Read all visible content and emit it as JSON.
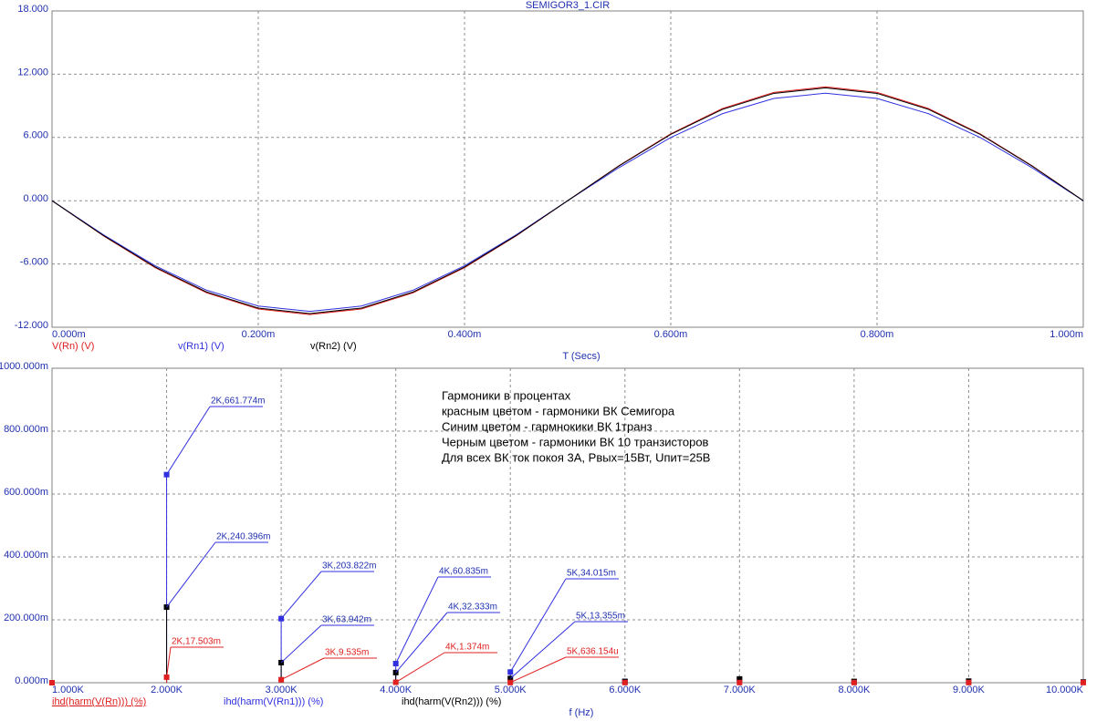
{
  "chart_data": [
    {
      "type": "line",
      "title": "SEMIGOR3_1.CIR",
      "x_label": "T (Secs)",
      "x": [
        0,
        5e-05,
        0.0001,
        0.00015,
        0.0002,
        0.00025,
        0.0003,
        0.00035,
        0.0004,
        0.00045,
        0.0005,
        0.00055,
        0.0006,
        0.00065,
        0.0007,
        0.00075,
        0.0008,
        0.00085,
        0.0009,
        0.00095,
        0.001
      ],
      "series": [
        {
          "name": "V(Rn) (V)",
          "color": "#e02020",
          "values": [
            0,
            -3.34,
            -6.35,
            -8.74,
            -10.27,
            -10.8,
            -10.27,
            -8.74,
            -6.35,
            -3.34,
            0,
            3.34,
            6.35,
            8.74,
            10.27,
            10.8,
            10.27,
            8.74,
            6.35,
            3.34,
            0
          ]
        },
        {
          "name": "v(Rn1) (V)",
          "color": "#3030e0",
          "values": [
            0,
            -3.24,
            -6.17,
            -8.49,
            -9.99,
            -10.5,
            -9.99,
            -8.49,
            -6.17,
            -3.24,
            0,
            3.15,
            6.0,
            8.25,
            9.7,
            10.2,
            9.7,
            8.25,
            6.0,
            3.15,
            0
          ]
        },
        {
          "name": "v(Rn2) (V)",
          "color": "#000000",
          "values": [
            0,
            -3.31,
            -6.29,
            -8.66,
            -10.18,
            -10.7,
            -10.18,
            -8.66,
            -6.29,
            -3.31,
            0,
            3.31,
            6.29,
            8.66,
            10.18,
            10.7,
            10.18,
            8.66,
            6.29,
            3.31,
            0
          ]
        }
      ],
      "xlim": [
        0,
        0.001
      ],
      "ylim": [
        -12,
        18
      ],
      "xticks": [
        {
          "value": 0,
          "label": "0.000m"
        },
        {
          "value": 0.0002,
          "label": "0.200m"
        },
        {
          "value": 0.0004,
          "label": "0.400m"
        },
        {
          "value": 0.0006,
          "label": "0.600m"
        },
        {
          "value": 0.0008,
          "label": "0.800m"
        },
        {
          "value": 0.001,
          "label": "1.000m"
        }
      ],
      "yticks": [
        {
          "value": -12,
          "label": "-12.000"
        },
        {
          "value": -6,
          "label": "-6.000"
        },
        {
          "value": 0,
          "label": "0.000"
        },
        {
          "value": 6,
          "label": "6.000"
        },
        {
          "value": 12,
          "label": "12.000"
        },
        {
          "value": 18,
          "label": "18.000"
        }
      ],
      "grid": true
    },
    {
      "type": "stem",
      "x_label": "f (Hz)",
      "x": [
        1000,
        2000,
        3000,
        4000,
        5000,
        6000,
        7000,
        8000,
        9000,
        10000
      ],
      "series": [
        {
          "name": "ihd(harm(V(Rn))) (%)",
          "color": "#e02020",
          "values": [
            0,
            0.017503,
            0.009535,
            0.001374,
            0.000636154,
            0.0005,
            0.0005,
            0.0005,
            0.0005,
            0.0005
          ],
          "value_labels": [
            null,
            "2K,17.503m",
            "3K,9.535m",
            "4K,1.374m",
            "5K,636.154u",
            null,
            null,
            null,
            null,
            null
          ]
        },
        {
          "name": "ihd(harm(V(Rn1))) (%)",
          "color": "#3030e0",
          "values": [
            0,
            0.661774,
            0.203822,
            0.060835,
            0.034015,
            0.004,
            0.01,
            0.003,
            0.004,
            0.002
          ],
          "value_labels": [
            null,
            "2K,661.774m",
            "3K,203.822m",
            "4K,60.835m",
            "5K,34.015m",
            null,
            null,
            null,
            null,
            null
          ]
        },
        {
          "name": "ihd(harm(V(Rn2))) (%)",
          "color": "#000000",
          "values": [
            0,
            0.240396,
            0.063942,
            0.032333,
            0.013355,
            0.004,
            0.012,
            0.004,
            0.005,
            0.002
          ],
          "value_labels": [
            null,
            "2K,240.396m",
            "3K,63.942m",
            "4K,32.333m",
            "5K,13.355m",
            null,
            null,
            null,
            null,
            null
          ]
        }
      ],
      "xlim": [
        1000,
        10000
      ],
      "ylim": [
        0,
        1
      ],
      "xticks": [
        {
          "value": 1000,
          "label": "1.000K"
        },
        {
          "value": 2000,
          "label": "2.000K"
        },
        {
          "value": 3000,
          "label": "3.000K"
        },
        {
          "value": 4000,
          "label": "4.000K"
        },
        {
          "value": 5000,
          "label": "5.000K"
        },
        {
          "value": 6000,
          "label": "6.000K"
        },
        {
          "value": 7000,
          "label": "7.000K"
        },
        {
          "value": 8000,
          "label": "8.000K"
        },
        {
          "value": 9000,
          "label": "9.000K"
        },
        {
          "value": 10000,
          "label": "10.000K"
        }
      ],
      "yticks": [
        {
          "value": 0,
          "label": "0.000m"
        },
        {
          "value": 0.2,
          "label": "200.000m"
        },
        {
          "value": 0.4,
          "label": "400.000m"
        },
        {
          "value": 0.6,
          "label": "600.000m"
        },
        {
          "value": 0.8,
          "label": "800.000m"
        },
        {
          "value": 1,
          "label": "1000.000m"
        }
      ],
      "grid": true,
      "annotation": [
        "Гармоники в процентах",
        "красным цветом - гармоники ВК Семигора",
        "Синим цветом - гармнокики ВК 1транз",
        "Черным цветом - гармоники ВК 10 транзисторов",
        "Для всех ВК ток покоя 3А, Рвых=15Вт, Uпит=25В"
      ]
    }
  ]
}
